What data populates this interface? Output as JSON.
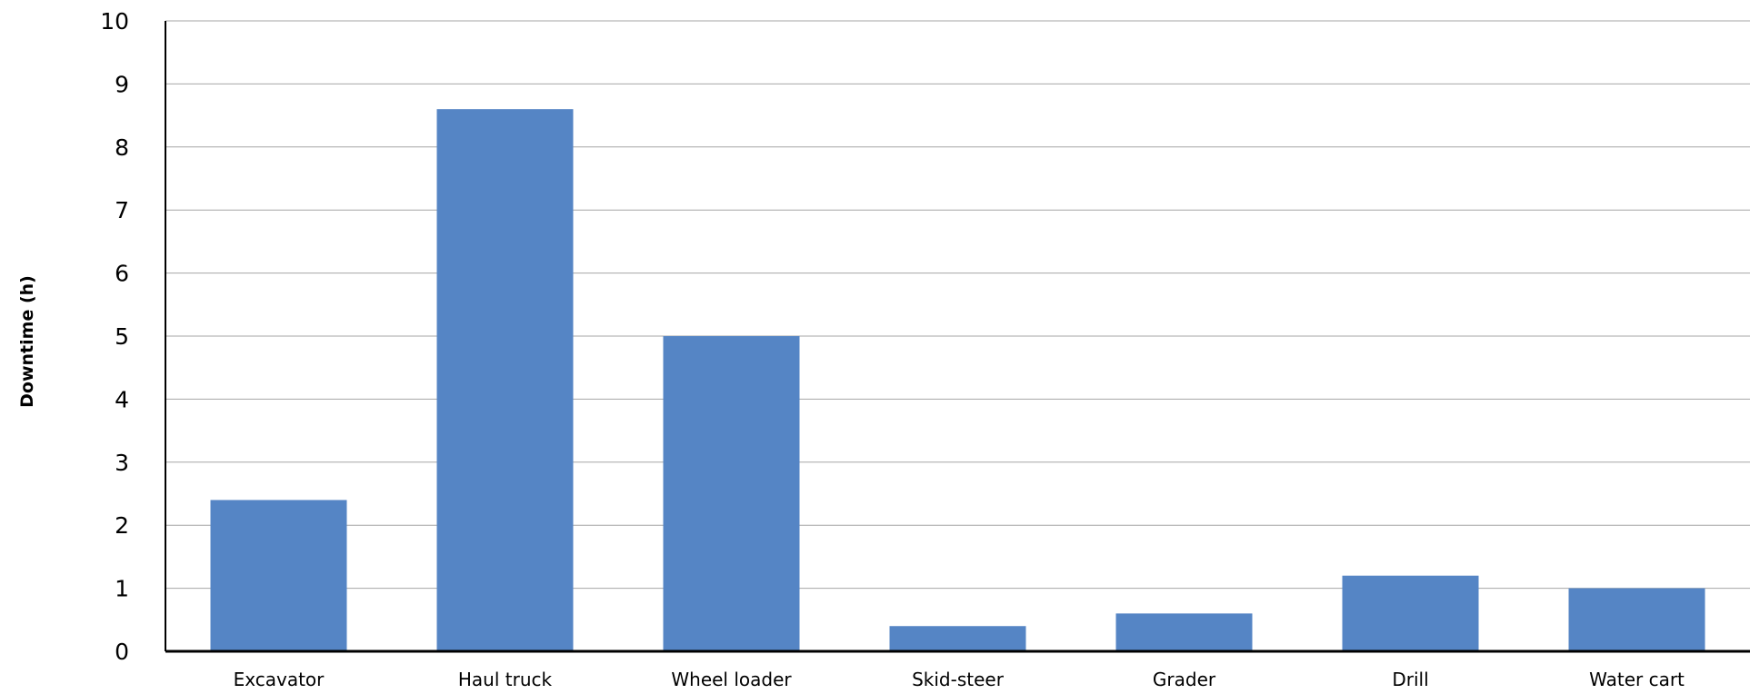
{
  "chart_data": {
    "type": "bar",
    "title": "",
    "xlabel": "",
    "ylabel": "Downtime (h)",
    "categories": [
      "Excavator",
      "Haul truck",
      "Wheel loader",
      "Skid-steer",
      "Grader",
      "Drill",
      "Water cart"
    ],
    "values": [
      2.4,
      8.6,
      5.0,
      0.4,
      0.6,
      1.2,
      1.0
    ],
    "ylim": [
      0,
      10
    ],
    "yticks": [
      "0",
      "1",
      "2",
      "3",
      "4",
      "5",
      "6",
      "7",
      "8",
      "9",
      "10"
    ],
    "grid": true,
    "legend": "none",
    "bar_color": "#5585c5"
  }
}
